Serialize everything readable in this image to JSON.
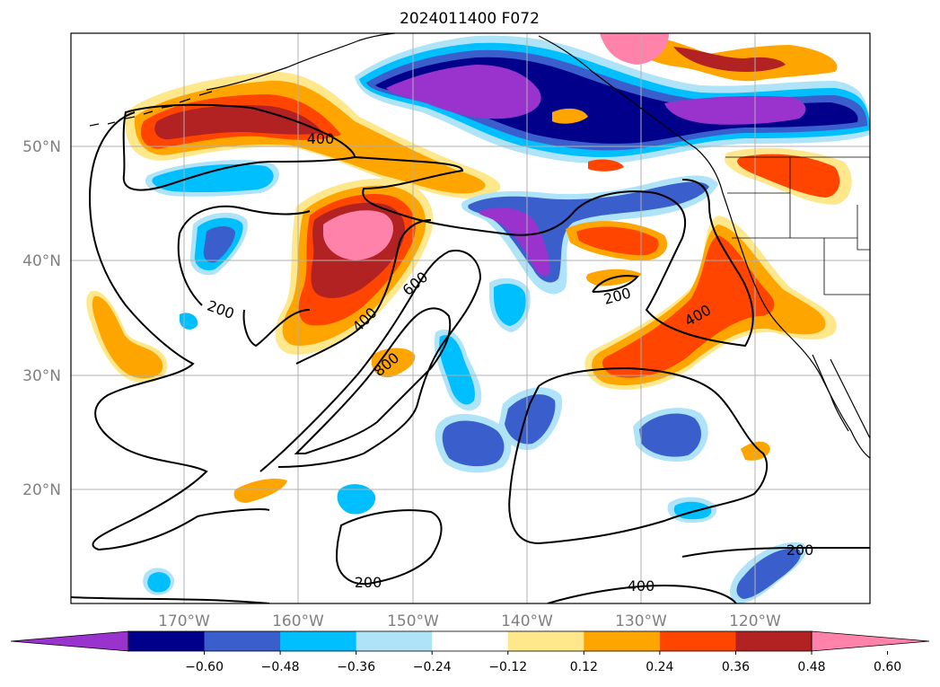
{
  "title": "2024011400 F072",
  "map": {
    "lat_labels": [
      "50°N",
      "40°N",
      "30°N",
      "20°N"
    ],
    "lon_labels": [
      "170°W",
      "160°W",
      "150°W",
      "140°W",
      "130°W",
      "120°W"
    ],
    "contour_labels": [
      {
        "text": "400"
      },
      {
        "text": "200"
      },
      {
        "text": "400"
      },
      {
        "text": "600"
      },
      {
        "text": "800"
      },
      {
        "text": "200"
      },
      {
        "text": "400"
      },
      {
        "text": "200"
      },
      {
        "text": "400"
      },
      {
        "text": "200"
      }
    ]
  },
  "colorbar": {
    "tick_labels": [
      "−0.60",
      "−0.48",
      "−0.36",
      "−0.24",
      "−0.12",
      "0.12",
      "0.24",
      "0.36",
      "0.48",
      "0.60"
    ],
    "colors": [
      "#9a32cd",
      "#00008b",
      "#3a5fcd",
      "#00bfff",
      "#aee3f8",
      "#ffffff",
      "#ffe88c",
      "#ffa500",
      "#ff4500",
      "#b22222",
      "#ff82ab"
    ]
  },
  "colors": {
    "purple": "#9a32cd",
    "navy": "#00008b",
    "royal": "#3a5fcd",
    "sky": "#00bfff",
    "light": "#aee3f8",
    "yellow": "#ffe88c",
    "orange": "#ffa500",
    "redorange": "#ff4500",
    "firebrick": "#b22222",
    "pink": "#ff82ab",
    "grid": "#b0b0b0"
  }
}
